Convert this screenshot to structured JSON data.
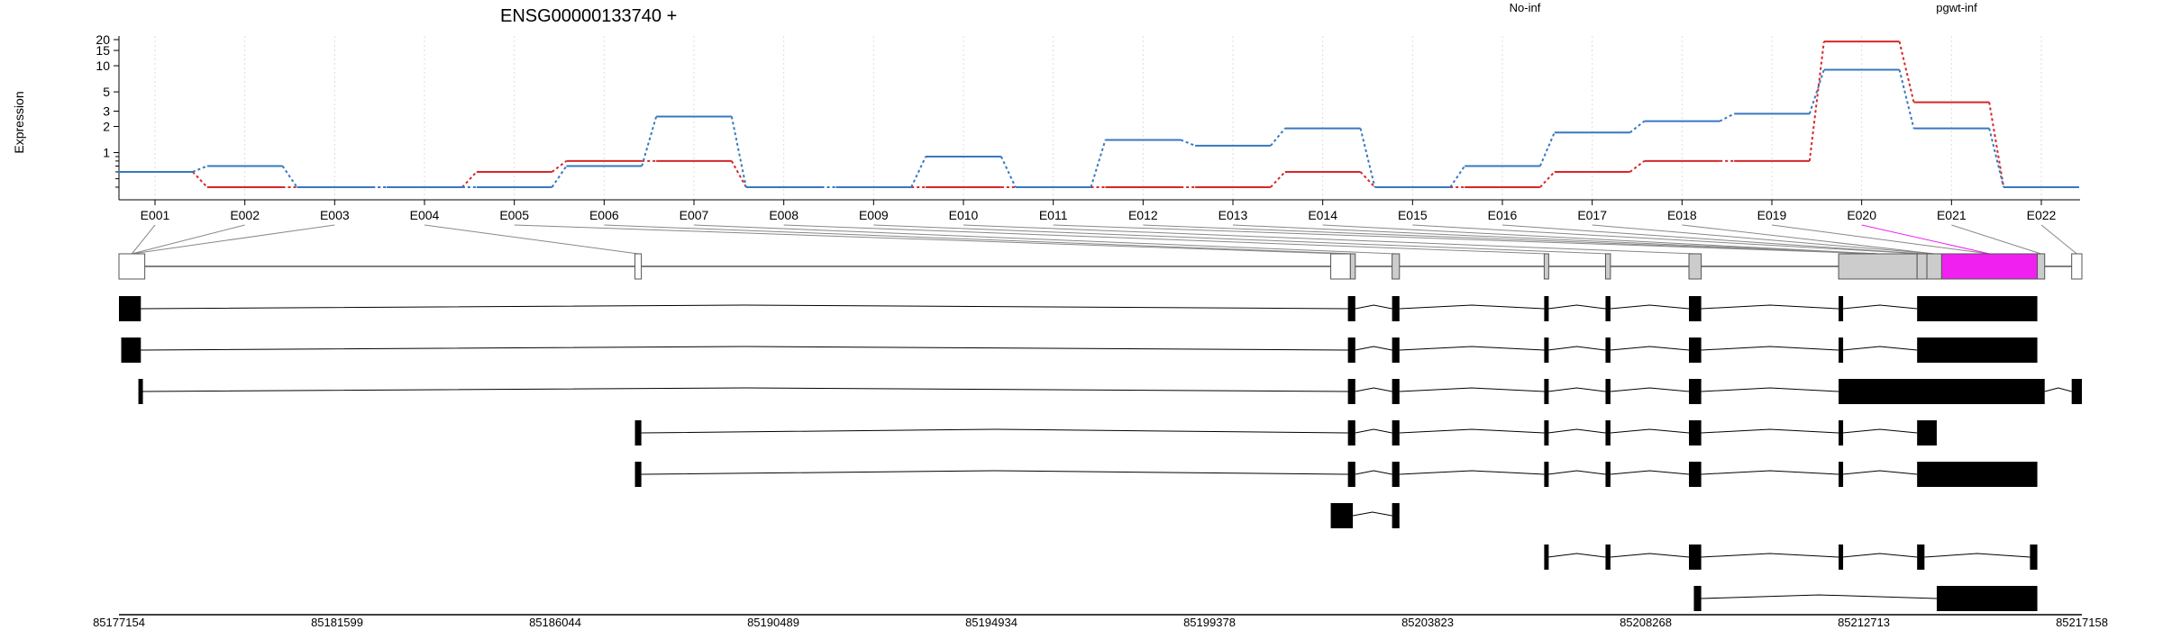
{
  "chart_data": {
    "type": "line",
    "title": "ENSG00000133740 +",
    "ylabel": "Expression",
    "xlabel": "",
    "y_scale": "log",
    "y_ticks": [
      1,
      2,
      3,
      5,
      10,
      15,
      20
    ],
    "ylim": [
      0.3,
      22
    ],
    "grid": "vertical dotted lines at each exon",
    "legend_placement": "top",
    "categories": [
      "E001",
      "E002",
      "E003",
      "E004",
      "E005",
      "E006",
      "E007",
      "E008",
      "E009",
      "E010",
      "E011",
      "E012",
      "E013",
      "E014",
      "E015",
      "E016",
      "E017",
      "E018",
      "E019",
      "E020",
      "E021",
      "E022"
    ],
    "series": [
      {
        "name": "No-inf",
        "color": "#d62728",
        "values": [
          0.6,
          0.4,
          0.4,
          0.4,
          0.6,
          0.8,
          0.8,
          0.4,
          0.4,
          0.4,
          0.4,
          0.4,
          0.4,
          0.6,
          0.4,
          0.4,
          0.6,
          0.8,
          0.8,
          19,
          3.8,
          0.4
        ]
      },
      {
        "name": "pgwt-inf",
        "color": "#3778bf",
        "values": [
          0.6,
          0.7,
          0.4,
          0.4,
          0.4,
          0.7,
          2.6,
          0.4,
          0.4,
          0.9,
          0.4,
          1.4,
          1.2,
          1.9,
          0.4,
          0.7,
          1.7,
          2.3,
          2.8,
          9,
          1.9,
          0.4
        ]
      }
    ],
    "genomic_ticks": [
      "85177154",
      "85181599",
      "85186044",
      "85190489",
      "85194934",
      "85199378",
      "85203823",
      "85208268",
      "85212713",
      "85217158"
    ],
    "genomic_range": [
      85177154,
      85217158
    ],
    "gene_model": {
      "exon_spans": [
        [
          85177154,
          85177680
        ],
        [
          85187670,
          85187800
        ],
        [
          85201850,
          85202250
        ],
        [
          85202250,
          85202350
        ],
        [
          85203100,
          85203250
        ],
        [
          85206200,
          85206280
        ],
        [
          85207450,
          85207550
        ],
        [
          85209150,
          85209400
        ],
        [
          85212200,
          85213800
        ],
        [
          85213800,
          85214000
        ],
        [
          85214000,
          85214300
        ],
        [
          85214300,
          85216250
        ],
        [
          85216250,
          85216400
        ],
        [
          85216950,
          85217158
        ]
      ],
      "highlighted_exon": "E020",
      "highlight_color": "#f020f0"
    },
    "transcripts": [
      {
        "exons": [
          [
            85177154,
            85177600
          ],
          [
            85202200,
            85202350
          ],
          [
            85203100,
            85203250
          ],
          [
            85206200,
            85206280
          ],
          [
            85207450,
            85207550
          ],
          [
            85209150,
            85209400
          ],
          [
            85212200,
            85212280
          ],
          [
            85213800,
            85216250
          ]
        ]
      },
      {
        "exons": [
          [
            85177200,
            85177600
          ],
          [
            85202200,
            85202350
          ],
          [
            85203100,
            85203250
          ],
          [
            85206200,
            85206280
          ],
          [
            85207450,
            85207550
          ],
          [
            85209150,
            85209400
          ],
          [
            85212200,
            85212280
          ],
          [
            85213800,
            85216250
          ]
        ]
      },
      {
        "exons": [
          [
            85177550,
            85177620
          ],
          [
            85202200,
            85202350
          ],
          [
            85203100,
            85203250
          ],
          [
            85206200,
            85206280
          ],
          [
            85207450,
            85207550
          ],
          [
            85209150,
            85209400
          ],
          [
            85212200,
            85216400
          ],
          [
            85216950,
            85217158
          ]
        ]
      },
      {
        "exons": [
          [
            85187670,
            85187800
          ],
          [
            85202200,
            85202350
          ],
          [
            85203100,
            85203250
          ],
          [
            85206200,
            85206280
          ],
          [
            85207450,
            85207550
          ],
          [
            85209150,
            85209400
          ],
          [
            85212200,
            85212280
          ],
          [
            85213800,
            85214200
          ]
        ]
      },
      {
        "exons": [
          [
            85187670,
            85187800
          ],
          [
            85202200,
            85202350
          ],
          [
            85203100,
            85203250
          ],
          [
            85206200,
            85206280
          ],
          [
            85207450,
            85207550
          ],
          [
            85209150,
            85209400
          ],
          [
            85212200,
            85212280
          ],
          [
            85213800,
            85216250
          ]
        ]
      },
      {
        "exons": [
          [
            85201850,
            85202300
          ],
          [
            85203100,
            85203250
          ]
        ]
      },
      {
        "exons": [
          [
            85206200,
            85206280
          ],
          [
            85207450,
            85207550
          ],
          [
            85209150,
            85209400
          ],
          [
            85212200,
            85212280
          ],
          [
            85213800,
            85213950
          ],
          [
            85216100,
            85216250
          ]
        ]
      },
      {
        "exons": [
          [
            85209250,
            85209400
          ],
          [
            85214200,
            85216250
          ]
        ]
      }
    ]
  }
}
